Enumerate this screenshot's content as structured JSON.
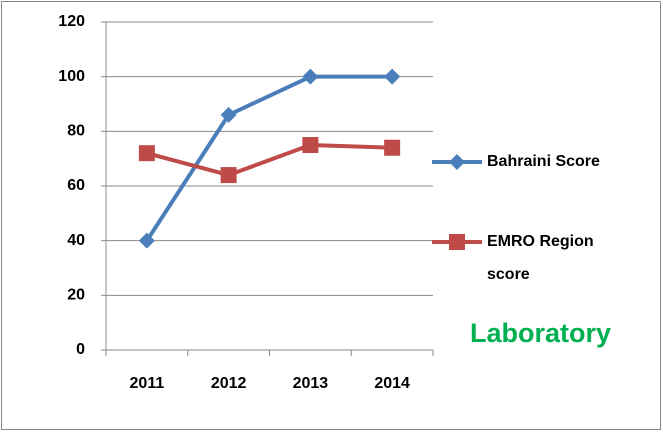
{
  "chart_data": {
    "type": "line",
    "categories": [
      "2011",
      "2012",
      "2013",
      "2014"
    ],
    "series": [
      {
        "name": "Bahraini Score",
        "color": "#4a7ebb",
        "marker": "diamond",
        "values": [
          40,
          86,
          100,
          100
        ]
      },
      {
        "name": "EMRO Region score",
        "color": "#be4b48",
        "marker": "square",
        "values": [
          72,
          64,
          75,
          74
        ]
      }
    ],
    "ylim": [
      0,
      120
    ],
    "yticks": [
      0,
      20,
      40,
      60,
      80,
      100,
      120
    ],
    "grid": true,
    "legend": "right",
    "annotation": {
      "text": "Laboratory",
      "color": "#00b050"
    }
  }
}
